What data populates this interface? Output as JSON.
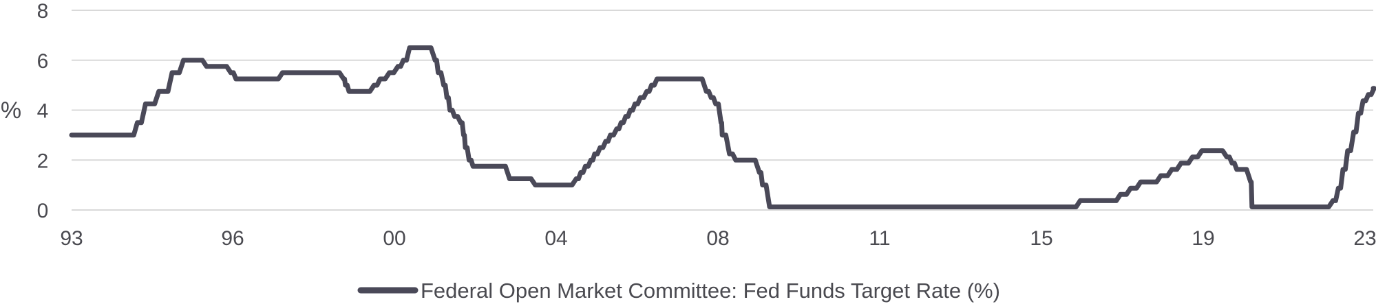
{
  "chart_data": {
    "type": "line",
    "ylabel": "%",
    "xlabel": "",
    "ylim": [
      0,
      8
    ],
    "y_ticks": [
      "0",
      "2",
      "4",
      "6",
      "8"
    ],
    "x_ticks": [
      "93",
      "96",
      "00",
      "04",
      "08",
      "11",
      "15",
      "19",
      "23"
    ],
    "grid": "horizontal",
    "legend_position": "bottom-center",
    "series": [
      {
        "name": "Federal Open Market Committee: Fed Funds Target Rate (%)",
        "color": "#4a4958",
        "points": [
          [
            "1993-01-01",
            3.0
          ],
          [
            "1994-02-04",
            3.0
          ],
          [
            "1994-03-22",
            3.5
          ],
          [
            "1994-05-17",
            4.25
          ],
          [
            "1994-08-16",
            4.75
          ],
          [
            "1994-11-15",
            5.5
          ],
          [
            "1995-02-01",
            6.0
          ],
          [
            "1995-07-06",
            5.75
          ],
          [
            "1995-12-19",
            5.5
          ],
          [
            "1996-01-31",
            5.25
          ],
          [
            "1997-03-25",
            5.5
          ],
          [
            "1998-09-29",
            5.25
          ],
          [
            "1998-10-15",
            5.0
          ],
          [
            "1998-11-17",
            4.75
          ],
          [
            "1999-06-30",
            5.0
          ],
          [
            "1999-08-24",
            5.25
          ],
          [
            "1999-11-16",
            5.5
          ],
          [
            "2000-02-02",
            5.75
          ],
          [
            "2000-03-21",
            6.0
          ],
          [
            "2000-05-16",
            6.5
          ],
          [
            "2001-01-03",
            6.0
          ],
          [
            "2001-01-31",
            5.5
          ],
          [
            "2001-03-20",
            5.0
          ],
          [
            "2001-04-18",
            4.5
          ],
          [
            "2001-05-15",
            4.0
          ],
          [
            "2001-06-27",
            3.75
          ],
          [
            "2001-08-21",
            3.5
          ],
          [
            "2001-09-17",
            3.0
          ],
          [
            "2001-10-02",
            2.5
          ],
          [
            "2001-11-06",
            2.0
          ],
          [
            "2001-12-11",
            1.75
          ],
          [
            "2002-11-06",
            1.25
          ],
          [
            "2003-06-25",
            1.0
          ],
          [
            "2004-06-30",
            1.25
          ],
          [
            "2004-08-10",
            1.5
          ],
          [
            "2004-09-21",
            1.75
          ],
          [
            "2004-11-10",
            2.0
          ],
          [
            "2004-12-14",
            2.25
          ],
          [
            "2005-02-02",
            2.5
          ],
          [
            "2005-03-22",
            2.75
          ],
          [
            "2005-05-03",
            3.0
          ],
          [
            "2005-06-30",
            3.25
          ],
          [
            "2005-08-09",
            3.5
          ],
          [
            "2005-09-20",
            3.75
          ],
          [
            "2005-11-01",
            4.0
          ],
          [
            "2005-12-13",
            4.25
          ],
          [
            "2006-01-31",
            4.5
          ],
          [
            "2006-03-28",
            4.75
          ],
          [
            "2006-05-10",
            5.0
          ],
          [
            "2006-06-29",
            5.25
          ],
          [
            "2007-09-18",
            4.75
          ],
          [
            "2007-10-31",
            4.5
          ],
          [
            "2007-12-11",
            4.25
          ],
          [
            "2008-01-22",
            3.5
          ],
          [
            "2008-01-30",
            3.0
          ],
          [
            "2008-03-18",
            2.25
          ],
          [
            "2008-04-30",
            2.0
          ],
          [
            "2008-10-08",
            1.5
          ],
          [
            "2008-10-29",
            1.0
          ],
          [
            "2008-12-16",
            0.125
          ],
          [
            "2015-12-16",
            0.375
          ],
          [
            "2016-12-14",
            0.625
          ],
          [
            "2017-03-15",
            0.875
          ],
          [
            "2017-06-14",
            1.125
          ],
          [
            "2017-12-13",
            1.375
          ],
          [
            "2018-03-21",
            1.625
          ],
          [
            "2018-06-13",
            1.875
          ],
          [
            "2018-09-26",
            2.125
          ],
          [
            "2018-12-19",
            2.375
          ],
          [
            "2019-07-31",
            2.125
          ],
          [
            "2019-09-18",
            1.875
          ],
          [
            "2019-10-30",
            1.625
          ],
          [
            "2020-03-03",
            1.125
          ],
          [
            "2020-03-15",
            0.125
          ],
          [
            "2022-03-16",
            0.375
          ],
          [
            "2022-05-04",
            0.875
          ],
          [
            "2022-06-15",
            1.625
          ],
          [
            "2022-07-27",
            2.375
          ],
          [
            "2022-09-21",
            3.125
          ],
          [
            "2022-11-02",
            3.875
          ],
          [
            "2022-12-14",
            4.375
          ],
          [
            "2023-02-01",
            4.625
          ],
          [
            "2023-03-22",
            4.875
          ]
        ]
      }
    ]
  }
}
